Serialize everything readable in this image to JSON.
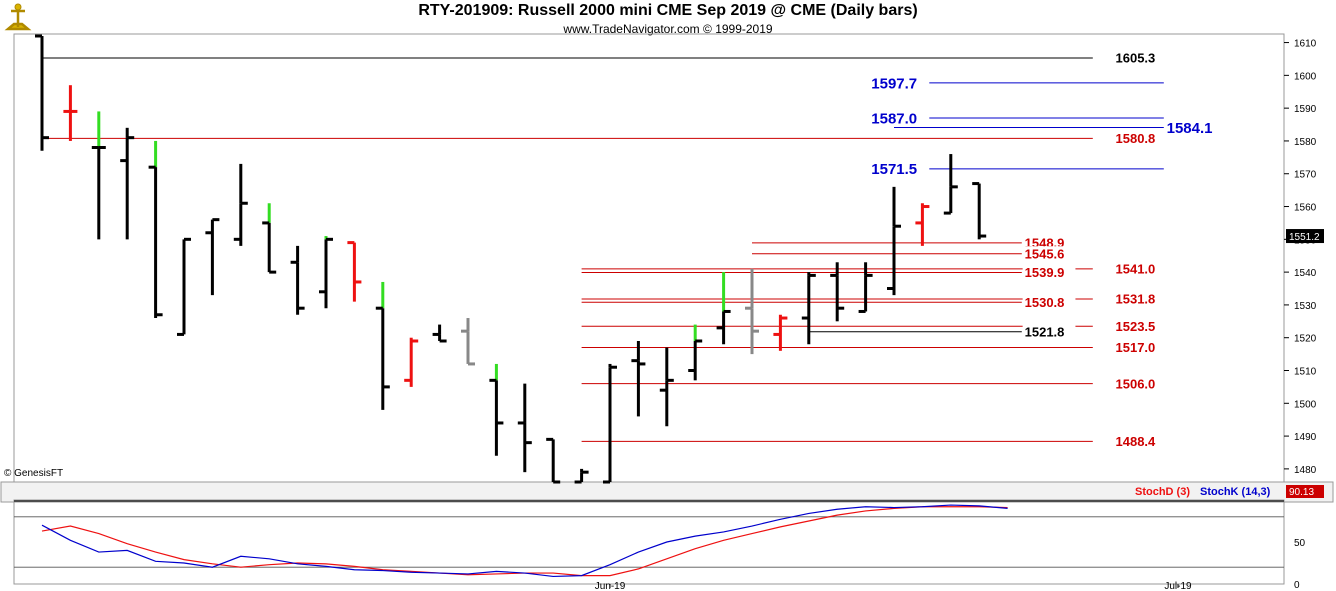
{
  "header": {
    "title": "RTY-201909:  Russell 2000 mini CME Sep 2019 @ CME  (Daily bars)",
    "subtitle": "www.TradeNavigator.com © 1999-2019",
    "copyright": "© GenesisFT"
  },
  "colors": {
    "up": "#33dd22",
    "down": "#ee1111",
    "neutral": "#000000",
    "inside": "#888888",
    "level_red": "#cc0000",
    "level_blue": "#0000cc",
    "level_black": "#000000",
    "stochD": "#cc0000",
    "stochK": "#0000cc"
  },
  "chart_data": [
    {
      "type": "ohlc",
      "price_axis": {
        "min": 1476,
        "max": 1612,
        "ticks": [
          1480,
          1490,
          1500,
          1510,
          1520,
          1530,
          1540,
          1550,
          1560,
          1570,
          1580,
          1590,
          1600,
          1610
        ]
      },
      "last_price_label": "1551.2",
      "time_labels": [
        {
          "label": "Jun-19",
          "bar": 20
        },
        {
          "label": "Jul-19",
          "bar": 40
        }
      ],
      "bars": [
        {
          "o": 1612,
          "h": 1612,
          "l": 1577,
          "c": 1581,
          "tail": "black",
          "color": "black"
        },
        {
          "o": 1589,
          "h": 1597,
          "l": 1580,
          "c": 1589,
          "tail": "red",
          "color": "red"
        },
        {
          "o": 1578,
          "h": 1589,
          "l": 1550,
          "c": 1578,
          "tail": "green",
          "color": "black"
        },
        {
          "o": 1574,
          "h": 1584,
          "l": 1550,
          "c": 1581,
          "tail": "black",
          "color": "black"
        },
        {
          "o": 1572,
          "h": 1580,
          "l": 1526,
          "c": 1527,
          "tail": "green",
          "color": "black"
        },
        {
          "o": 1521,
          "h": 1550,
          "l": 1521,
          "c": 1550,
          "tail": "black",
          "color": "black"
        },
        {
          "o": 1552,
          "h": 1556,
          "l": 1533,
          "c": 1556,
          "tail": "black",
          "color": "black"
        },
        {
          "o": 1550,
          "h": 1573,
          "l": 1548,
          "c": 1561,
          "tail": "black",
          "color": "black"
        },
        {
          "o": 1555,
          "h": 1561,
          "l": 1540,
          "c": 1540,
          "tail": "green",
          "color": "black"
        },
        {
          "o": 1543,
          "h": 1548,
          "l": 1527,
          "c": 1529,
          "tail": "black",
          "color": "black"
        },
        {
          "o": 1534,
          "h": 1551,
          "l": 1529,
          "c": 1550,
          "tail": "green",
          "color": "black"
        },
        {
          "o": 1549,
          "h": 1549,
          "l": 1531,
          "c": 1537,
          "tail": "red",
          "color": "red"
        },
        {
          "o": 1529,
          "h": 1537,
          "l": 1498,
          "c": 1505,
          "tail": "green",
          "color": "black"
        },
        {
          "o": 1507,
          "h": 1520,
          "l": 1505,
          "c": 1519,
          "tail": "red",
          "color": "red"
        },
        {
          "o": 1521,
          "h": 1524,
          "l": 1519,
          "c": 1519,
          "tail": "black",
          "color": "black"
        },
        {
          "o": 1522,
          "h": 1526,
          "l": 1512,
          "c": 1512,
          "tail": "gray",
          "color": "gray"
        },
        {
          "o": 1507,
          "h": 1512,
          "l": 1484,
          "c": 1494,
          "tail": "green",
          "color": "black"
        },
        {
          "o": 1494,
          "h": 1506,
          "l": 1479,
          "c": 1488,
          "tail": "black",
          "color": "black"
        },
        {
          "o": 1489,
          "h": 1489,
          "l": 1476,
          "c": 1476,
          "tail": "black",
          "color": "black"
        },
        {
          "o": 1476,
          "h": 1480,
          "l": 1476,
          "c": 1479,
          "tail": "black",
          "color": "black"
        },
        {
          "o": 1476,
          "h": 1512,
          "l": 1476,
          "c": 1511,
          "tail": "black",
          "color": "black"
        },
        {
          "o": 1513,
          "h": 1519,
          "l": 1496,
          "c": 1512,
          "tail": "black",
          "color": "black"
        },
        {
          "o": 1504,
          "h": 1517,
          "l": 1493,
          "c": 1507,
          "tail": "black",
          "color": "black"
        },
        {
          "o": 1510,
          "h": 1524,
          "l": 1507,
          "c": 1519,
          "tail": "green",
          "color": "black"
        },
        {
          "o": 1523,
          "h": 1540,
          "l": 1518,
          "c": 1528,
          "tail": "green",
          "color": "black"
        },
        {
          "o": 1529,
          "h": 1541,
          "l": 1515,
          "c": 1522,
          "tail": "gray",
          "color": "gray"
        },
        {
          "o": 1521,
          "h": 1527,
          "l": 1516,
          "c": 1526,
          "tail": "red",
          "color": "red"
        },
        {
          "o": 1526,
          "h": 1540,
          "l": 1518,
          "c": 1539,
          "tail": "black",
          "color": "black"
        },
        {
          "o": 1539,
          "h": 1543,
          "l": 1525,
          "c": 1529,
          "tail": "black",
          "color": "black"
        },
        {
          "o": 1528,
          "h": 1543,
          "l": 1528,
          "c": 1539,
          "tail": "black",
          "color": "black"
        },
        {
          "o": 1535,
          "h": 1566,
          "l": 1533,
          "c": 1554,
          "tail": "black",
          "color": "black"
        },
        {
          "o": 1555,
          "h": 1561,
          "l": 1548,
          "c": 1560,
          "tail": "red",
          "color": "red"
        },
        {
          "o": 1558,
          "h": 1576,
          "l": 1558,
          "c": 1566,
          "tail": "black",
          "color": "black"
        },
        {
          "o": 1567,
          "h": 1567,
          "l": 1550,
          "c": 1551,
          "tail": "black",
          "color": "black"
        }
      ],
      "levels": [
        {
          "label": "1605.3",
          "price": 1605.3,
          "color": "black",
          "from_bar": 0,
          "to_bar": 37,
          "label_bar": 37.8,
          "label_size": "md"
        },
        {
          "label": "1597.7",
          "price": 1597.7,
          "color": "blue",
          "from_bar": 30,
          "to_bar": 39.5,
          "label_bar": 29.2,
          "label_size": "lg"
        },
        {
          "label": "1587.0",
          "price": 1587.0,
          "color": "blue",
          "from_bar": 30,
          "to_bar": 39.5,
          "label_bar": 29.2,
          "label_size": "lg"
        },
        {
          "label": "1584.1",
          "price": 1584.1,
          "color": "blue",
          "from_bar": 30,
          "to_bar": 39.5,
          "label_bar": 39.6,
          "label_size": "lg"
        },
        {
          "label": "1580.8",
          "price": 1580.8,
          "color": "red",
          "from_bar": 0,
          "to_bar": 37,
          "label_bar": 37.8,
          "label_size": "md"
        },
        {
          "label": "1571.5",
          "price": 1571.5,
          "color": "blue",
          "from_bar": 30,
          "to_bar": 39.5,
          "label_bar": 29.2,
          "label_size": "lg"
        },
        {
          "label": "1548.9",
          "price": 1548.9,
          "color": "red",
          "from_bar": 25,
          "to_bar": 34.5,
          "label_bar": 34.6,
          "label_size": "md"
        },
        {
          "label": "1545.6",
          "price": 1545.6,
          "color": "red",
          "from_bar": 25,
          "to_bar": 34.5,
          "label_bar": 34.6,
          "label_size": "md"
        },
        {
          "label": "1541.0",
          "price": 1541.0,
          "color": "red",
          "from_bar": 19,
          "to_bar": 37,
          "label_bar": 37.8,
          "label_size": "md"
        },
        {
          "label": "1539.9",
          "price": 1539.9,
          "color": "red",
          "from_bar": 19,
          "to_bar": 34.5,
          "label_bar": 34.6,
          "label_size": "md"
        },
        {
          "label": "1531.8",
          "price": 1531.8,
          "color": "red",
          "from_bar": 19,
          "to_bar": 37,
          "label_bar": 37.8,
          "label_size": "md"
        },
        {
          "label": "1530.8",
          "price": 1530.8,
          "color": "red",
          "from_bar": 19,
          "to_bar": 34.5,
          "label_bar": 34.6,
          "label_size": "md"
        },
        {
          "label": "1523.5",
          "price": 1523.5,
          "color": "red",
          "from_bar": 19,
          "to_bar": 37,
          "label_bar": 37.8,
          "label_size": "md"
        },
        {
          "label": "1521.8",
          "price": 1521.8,
          "color": "black",
          "from_bar": 27,
          "to_bar": 34.5,
          "label_bar": 34.6,
          "label_size": "md"
        },
        {
          "label": "1517.0",
          "price": 1517.0,
          "color": "red",
          "from_bar": 19,
          "to_bar": 37,
          "label_bar": 37.8,
          "label_size": "md"
        },
        {
          "label": "1506.0",
          "price": 1506.0,
          "color": "red",
          "from_bar": 19,
          "to_bar": 37,
          "label_bar": 37.8,
          "label_size": "md"
        },
        {
          "label": "1488.4",
          "price": 1488.4,
          "color": "red",
          "from_bar": 19,
          "to_bar": 37,
          "label_bar": 37.8,
          "label_size": "md"
        }
      ]
    },
    {
      "type": "line",
      "name": "Stochastic",
      "y_axis": {
        "min": 0,
        "max": 100,
        "ticks": [
          0,
          50
        ]
      },
      "last_value_label": "90.13",
      "legend": [
        {
          "name": "StochD (3)",
          "color": "red"
        },
        {
          "name": "StochK (14,3)",
          "color": "blue"
        }
      ],
      "series": [
        {
          "name": "StochD (3)",
          "color": "red",
          "values": [
            63,
            69,
            60,
            48,
            38,
            29,
            24,
            20,
            23,
            25,
            24,
            21,
            17,
            15,
            13,
            11,
            12,
            13,
            13,
            10,
            10,
            18,
            30,
            42,
            52,
            60,
            68,
            75,
            82,
            87,
            90,
            92,
            92,
            92,
            91
          ]
        },
        {
          "name": "StochK (14,3)",
          "color": "blue",
          "values": [
            70,
            52,
            38,
            40,
            27,
            25,
            20,
            33,
            30,
            24,
            21,
            17,
            16,
            14,
            13,
            12,
            15,
            13,
            9,
            10,
            23,
            38,
            50,
            57,
            62,
            69,
            77,
            84,
            89,
            92,
            91,
            92,
            94,
            93,
            90
          ]
        }
      ]
    }
  ]
}
